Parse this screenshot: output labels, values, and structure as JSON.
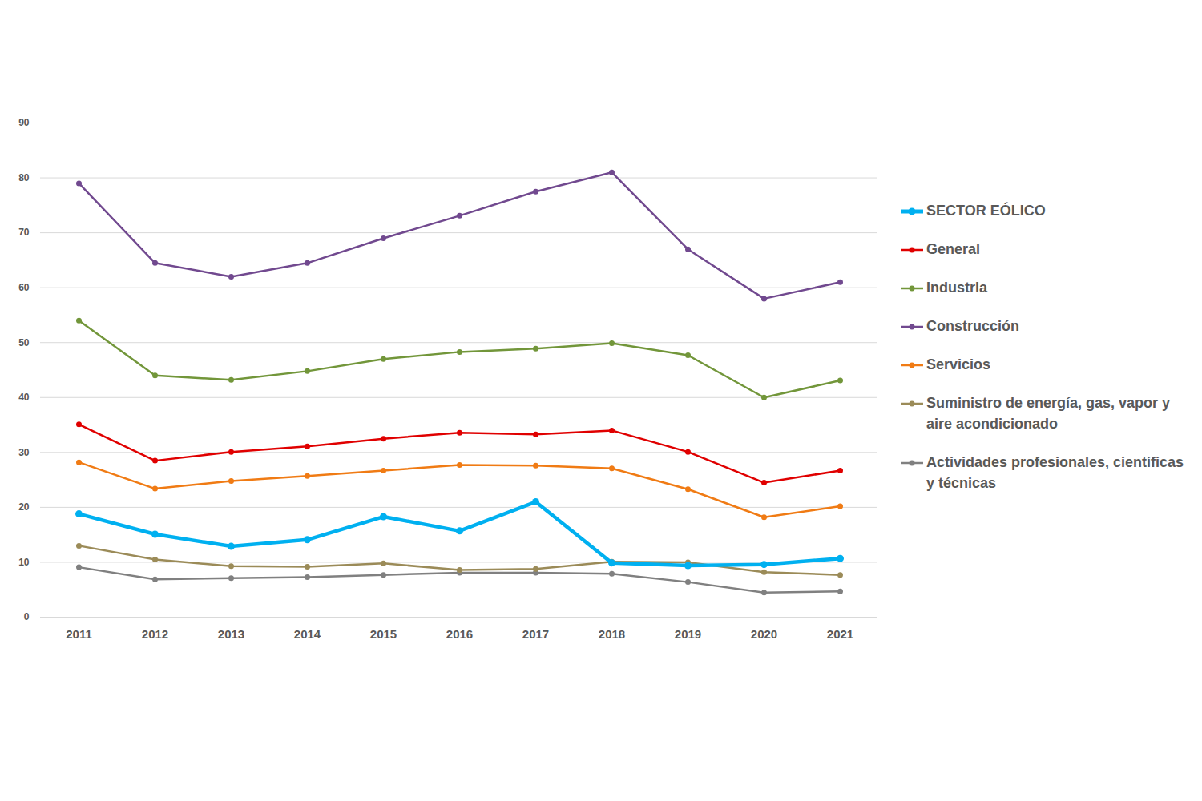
{
  "chart_data": {
    "type": "line",
    "categories": [
      "2011",
      "2012",
      "2013",
      "2014",
      "2015",
      "2016",
      "2017",
      "2018",
      "2019",
      "2020",
      "2021"
    ],
    "series": [
      {
        "name": "SECTOR EÓLICO",
        "color": "#00b0f0",
        "marker": "circle",
        "values": [
          18.8,
          15.1,
          12.9,
          14.1,
          18.3,
          15.7,
          21.0,
          9.9,
          9.4,
          9.6,
          10.7
        ]
      },
      {
        "name": "General",
        "color": "#e00000",
        "marker": "circle",
        "values": [
          35.1,
          28.5,
          30.1,
          31.1,
          32.5,
          33.6,
          33.3,
          34.0,
          30.1,
          24.5,
          26.7
        ]
      },
      {
        "name": "Industria",
        "color": "#72963a",
        "marker": "circle",
        "values": [
          54.0,
          44.0,
          43.2,
          44.8,
          47.0,
          48.3,
          48.9,
          49.9,
          47.7,
          40.0,
          43.1
        ]
      },
      {
        "name": "Construcción",
        "color": "#71498f",
        "marker": "circle",
        "values": [
          79.0,
          64.5,
          62.0,
          64.5,
          69.0,
          73.1,
          77.5,
          81.0,
          67.0,
          58.0,
          61.0
        ]
      },
      {
        "name": "Servicios",
        "color": "#f07b14",
        "marker": "circle",
        "values": [
          28.2,
          23.4,
          24.8,
          25.7,
          26.7,
          27.7,
          27.6,
          27.1,
          23.3,
          18.2,
          20.2
        ]
      },
      {
        "name": "Suministro de energía, gas, vapor y aire acondicionado",
        "color": "#9b8b58",
        "marker": "circle",
        "values": [
          13.0,
          10.5,
          9.3,
          9.2,
          9.8,
          8.6,
          8.8,
          10.1,
          10.0,
          8.2,
          7.7
        ]
      },
      {
        "name": "Actividades profesionales, científicas y técnicas",
        "color": "#808080",
        "marker": "circle",
        "values": [
          9.1,
          6.9,
          7.1,
          7.3,
          7.7,
          8.1,
          8.1,
          7.9,
          6.4,
          4.5,
          4.7
        ]
      }
    ],
    "ylim": [
      0,
      90
    ],
    "yticks": [
      0,
      10,
      20,
      30,
      40,
      50,
      60,
      70,
      80,
      90
    ],
    "grid": true,
    "legend": "right"
  }
}
